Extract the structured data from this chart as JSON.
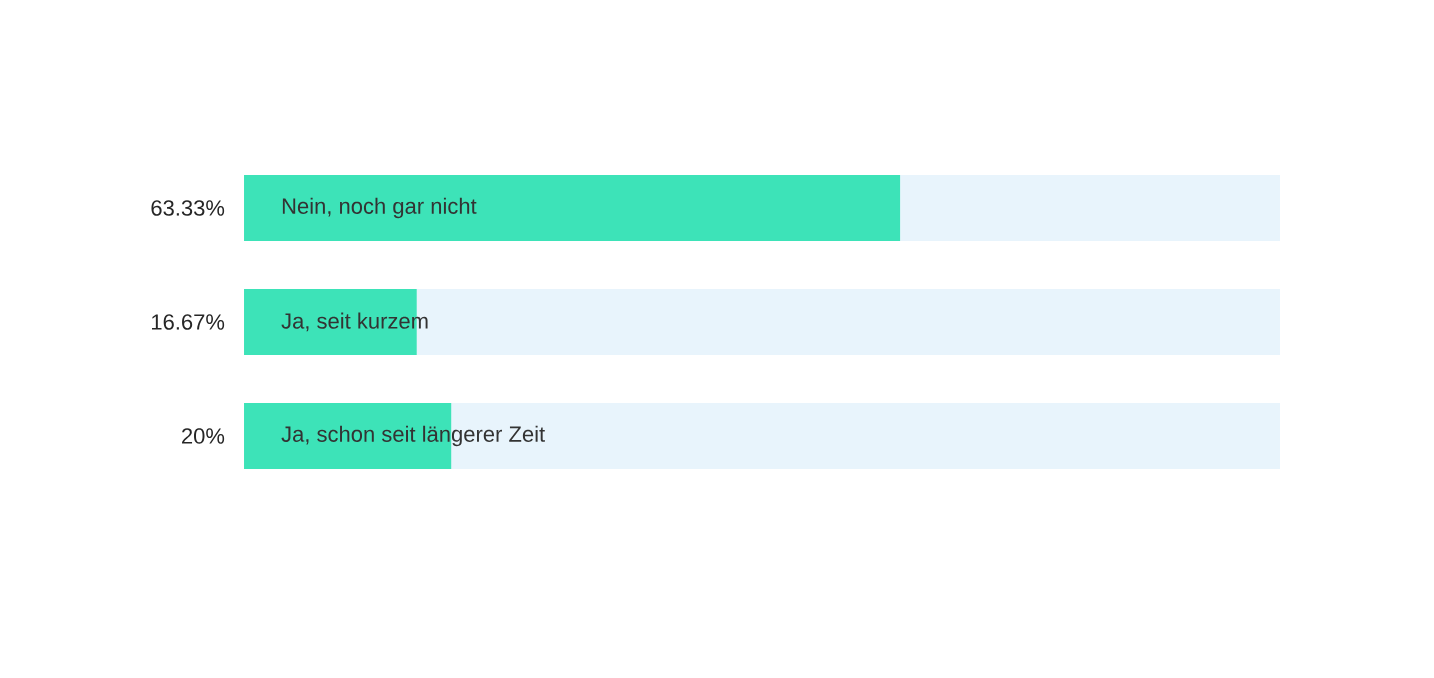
{
  "chart_data": {
    "type": "bar",
    "orientation": "horizontal",
    "categories": [
      "Nein, noch gar nicht",
      "Ja, seit kurzem",
      "Ja, schon seit längerer Zeit"
    ],
    "values": [
      63.33,
      16.67,
      20
    ],
    "value_labels": [
      "63.33%",
      "16.67%",
      "20%"
    ],
    "color": "#3de3b8",
    "xlim": [
      0,
      100
    ]
  }
}
